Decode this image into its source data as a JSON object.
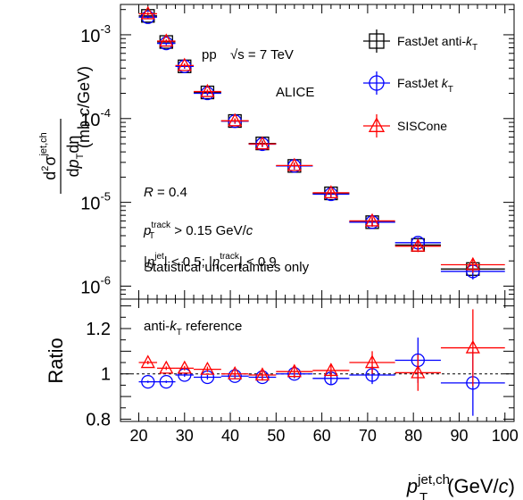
{
  "chart_data": {
    "type": "scatter",
    "panels": {
      "top": {
        "ylabel": "d²σ^{jet,ch} / dp_T dη (mb c/GeV)",
        "yscale": "log",
        "ylim": [
          7e-07,
          0.0023
        ],
        "yticks": [
          {
            "value": 1e-06,
            "base": "10",
            "exp": "-6"
          },
          {
            "value": 1e-05,
            "base": "10",
            "exp": "-5"
          },
          {
            "value": 0.0001,
            "base": "10",
            "exp": "-4"
          },
          {
            "value": 0.001,
            "base": "10",
            "exp": "-3"
          }
        ]
      },
      "bottom": {
        "ylabel": "Ratio",
        "ylim": [
          0.79,
          1.33
        ],
        "yticks": [
          "0.8",
          "1",
          "1.2"
        ],
        "reference_line": 1.0
      }
    },
    "xlabel": "p_T^{jet,ch} (GeV/c)",
    "xlim": [
      16,
      102
    ],
    "xticks": [
      "20",
      "30",
      "40",
      "50",
      "60",
      "70",
      "80",
      "90",
      "100"
    ],
    "series": [
      {
        "name": "FastJet anti-k_T",
        "color": "#000000",
        "marker": "open-square",
        "x": [
          22,
          26,
          30,
          35,
          41,
          47,
          54,
          62,
          71,
          81,
          93
        ],
        "xerr": [
          2,
          2,
          2,
          3,
          3,
          3,
          4,
          4,
          5,
          5,
          7
        ],
        "y": [
          0.00168,
          0.00082,
          0.00042,
          0.000205,
          9.35e-05,
          5.05e-05,
          2.72e-05,
          1.28e-05,
          5.8e-06,
          3.1e-06,
          1.6e-06
        ],
        "yerr_frac": [
          0.05,
          0.05,
          0.06,
          0.06,
          0.07,
          0.08,
          0.09,
          0.1,
          0.12,
          0.15,
          0.2
        ]
      },
      {
        "name": "FastJet k_T",
        "color": "#0000ff",
        "marker": "open-circle",
        "x": [
          22,
          26,
          30,
          35,
          41,
          47,
          54,
          62,
          71,
          81,
          93
        ],
        "xerr": [
          2,
          2,
          2,
          3,
          3,
          3,
          4,
          4,
          5,
          5,
          7
        ],
        "y": [
          0.00162,
          0.00079,
          0.00042,
          0.0002,
          9.3e-05,
          4.95e-05,
          2.72e-05,
          1.25e-05,
          5.8e-06,
          3.3e-06,
          1.5e-06
        ],
        "yerr_frac": [
          0.05,
          0.05,
          0.06,
          0.06,
          0.07,
          0.08,
          0.09,
          0.1,
          0.12,
          0.15,
          0.2
        ]
      },
      {
        "name": "SISCone",
        "color": "#ff0000",
        "marker": "open-triangle",
        "x": [
          22,
          26,
          30,
          35,
          41,
          47,
          54,
          62,
          71,
          81,
          93
        ],
        "xerr": [
          2,
          2,
          2,
          3,
          3,
          3,
          4,
          4,
          5,
          5,
          7
        ],
        "y": [
          0.00178,
          0.00084,
          0.00043,
          0.00021,
          9.4e-05,
          4.98e-05,
          2.75e-05,
          1.3e-05,
          6e-06,
          3e-06,
          1.8e-06
        ],
        "yerr_frac": [
          0.05,
          0.05,
          0.06,
          0.06,
          0.07,
          0.08,
          0.09,
          0.1,
          0.12,
          0.15,
          0.2
        ]
      }
    ],
    "ratio_series": [
      {
        "name": "FastJet k_T",
        "color": "#0000ff",
        "marker": "open-circle",
        "x": [
          22,
          26,
          30,
          35,
          41,
          47,
          54,
          62,
          71,
          81,
          93
        ],
        "xerr": [
          2,
          2,
          2,
          3,
          3,
          3,
          4,
          4,
          5,
          5,
          7
        ],
        "y": [
          0.965,
          0.965,
          0.995,
          0.985,
          0.99,
          0.985,
          1.0,
          0.98,
          0.995,
          1.06,
          0.96
        ],
        "yerr": [
          0.005,
          0.005,
          0.008,
          0.01,
          0.012,
          0.015,
          0.02,
          0.025,
          0.04,
          0.1,
          0.145
        ]
      },
      {
        "name": "SISCone",
        "color": "#ff0000",
        "marker": "open-triangle",
        "x": [
          22,
          26,
          30,
          35,
          41,
          47,
          54,
          62,
          71,
          81,
          93
        ],
        "xerr": [
          2,
          2,
          2,
          3,
          3,
          3,
          4,
          4,
          5,
          5,
          7
        ],
        "y": [
          1.05,
          1.025,
          1.025,
          1.02,
          1.0,
          0.995,
          1.01,
          1.015,
          1.05,
          1.005,
          1.115
        ],
        "yerr": [
          0.008,
          0.008,
          0.01,
          0.012,
          0.015,
          0.02,
          0.025,
          0.03,
          0.05,
          0.08,
          0.17
        ]
      }
    ],
    "legend": {
      "placement": "top-right",
      "entries": [
        "FastJet anti-k_T",
        "FastJet k_T",
        "SISCone"
      ]
    },
    "annotations": {
      "system": "pp",
      "energy": "√s = 7 TeV",
      "experiment": "ALICE",
      "radius": "R = 0.4",
      "track_pt_cut": "p_T^track > 0.15 GeV/c",
      "eta_cuts": "|η^jet| < 0.5; |η^track| < 0.9",
      "uncertainty_note": "Statistical uncertainties only",
      "ratio_reference": "anti-k_T reference"
    }
  }
}
